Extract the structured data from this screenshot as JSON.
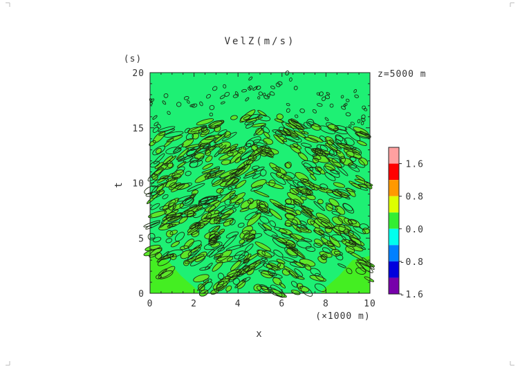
{
  "chart_data": {
    "type": "heatmap",
    "title": "VelZ(m/s)",
    "annotation": "z=5000 m",
    "xlabel": "x",
    "xunit": "(×1000 m)",
    "ylabel": "t",
    "yunit": "(s)",
    "xlim": [
      0,
      10
    ],
    "ylim": [
      0,
      20
    ],
    "x_ticks": [
      "0",
      "2",
      "4",
      "6",
      "8",
      "10"
    ],
    "y_ticks": [
      "0",
      "5",
      "10",
      "15",
      "20"
    ],
    "contour_lines": true,
    "colorbar": {
      "labels": [
        "1.6",
        "0.8",
        "0.0",
        "-0.8",
        "-1.6"
      ],
      "colors": [
        "#ffa0a0",
        "#ff0000",
        "#ff9900",
        "#ddff00",
        "#33ee33",
        "#00ffee",
        "#0080ff",
        "#0000dd",
        "#7700aa"
      ]
    },
    "field_colors": {
      "background": "#1ef074",
      "lower_region": "#44ee22",
      "patch": "#5de82a",
      "contour": "#1a2a10"
    }
  }
}
